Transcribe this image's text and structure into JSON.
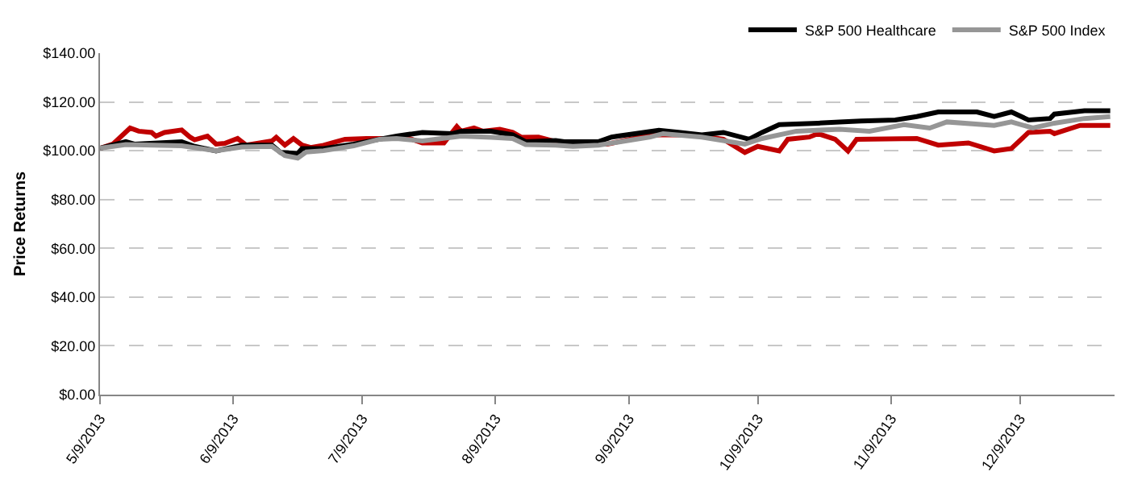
{
  "chart_data": {
    "type": "line",
    "ylabel": "Price Returns",
    "legend": "top right",
    "grid": "y",
    "line_style": "solid",
    "marker": "none",
    "xlim": [
      "2013-05-09",
      "2013-12-31"
    ],
    "xticks": [
      {
        "value": "2013-05-09",
        "label": "5/9/2013"
      },
      {
        "value": "2013-06-09",
        "label": "6/9/2013"
      },
      {
        "value": "2013-07-09",
        "label": "7/9/2013"
      },
      {
        "value": "2013-08-09",
        "label": "8/9/2013"
      },
      {
        "value": "2013-09-09",
        "label": "9/9/2013"
      },
      {
        "value": "2013-10-09",
        "label": "10/9/2013"
      },
      {
        "value": "2013-11-09",
        "label": "11/9/2013"
      },
      {
        "value": "2013-12-09",
        "label": "12/9/2013"
      }
    ],
    "ylim": [
      0,
      140
    ],
    "yticks": [
      {
        "value": 0,
        "label": "$0.00"
      },
      {
        "value": 20,
        "label": "$20.00"
      },
      {
        "value": 40,
        "label": "$40.00"
      },
      {
        "value": 60,
        "label": "$60.00"
      },
      {
        "value": 80,
        "label": "$80.00"
      },
      {
        "value": 100,
        "label": "$100.00"
      },
      {
        "value": 120,
        "label": "$120.00"
      },
      {
        "value": 140,
        "label": "$140.00"
      }
    ],
    "series": [
      {
        "color": "#c00000",
        "x": [
          "2013-05-09",
          "2013-05-12",
          "2013-05-16",
          "2013-05-18",
          "2013-05-21",
          "2013-05-22",
          "2013-05-24",
          "2013-05-28",
          "2013-05-30",
          "2013-05-31",
          "2013-06-03",
          "2013-06-05",
          "2013-06-07",
          "2013-06-10",
          "2013-06-12",
          "2013-06-18",
          "2013-06-19",
          "2013-06-21",
          "2013-06-23",
          "2013-06-25",
          "2013-06-27",
          "2013-06-30",
          "2013-07-03",
          "2013-07-05",
          "2013-07-10",
          "2013-07-17",
          "2013-07-20",
          "2013-07-23",
          "2013-07-28",
          "2013-07-31",
          "2013-08-01",
          "2013-08-04",
          "2013-08-06",
          "2013-08-10",
          "2013-08-13",
          "2013-08-15",
          "2013-08-19",
          "2013-08-23",
          "2013-08-27",
          "2013-09-04",
          "2013-09-14",
          "2013-09-24",
          "2013-10-01",
          "2013-10-06",
          "2013-10-09",
          "2013-10-14",
          "2013-10-16",
          "2013-10-21",
          "2013-10-23",
          "2013-10-27",
          "2013-10-30",
          "2013-11-01",
          "2013-11-15",
          "2013-11-20",
          "2013-11-27",
          "2013-12-03",
          "2013-12-07",
          "2013-12-11",
          "2013-12-16",
          "2013-12-17",
          "2013-12-23",
          "2013-12-30"
        ],
        "values": [
          101,
          102.7,
          109.3,
          108,
          107.5,
          106,
          107.5,
          108.5,
          105.5,
          104.5,
          106,
          102.7,
          103,
          105,
          102.3,
          104,
          105.5,
          102.3,
          105,
          102.3,
          101.3,
          102.2,
          103.7,
          104.7,
          105,
          105,
          105,
          103.2,
          103.2,
          109.9,
          108,
          109.3,
          108,
          108.8,
          107.5,
          105.5,
          105.6,
          103.7,
          102.7,
          102.7,
          106.5,
          106.5,
          104.7,
          99.3,
          101.8,
          99.9,
          104.7,
          105.6,
          107,
          104.7,
          99.9,
          104.7,
          105,
          102.3,
          103.2,
          99.9,
          100.9,
          107.5,
          108,
          107,
          110.4,
          110.4
        ]
      },
      {
        "name": "S&P 500 Healthcare",
        "color": "#000000",
        "x": [
          "2013-05-09",
          "2013-05-15",
          "2013-05-17",
          "2013-05-28",
          "2013-05-31",
          "2013-06-05",
          "2013-06-11",
          "2013-06-18",
          "2013-06-20",
          "2013-06-24",
          "2013-06-25",
          "2013-06-30",
          "2013-07-07",
          "2013-07-13",
          "2013-07-17",
          "2013-07-23",
          "2013-07-30",
          "2013-08-01",
          "2013-08-08",
          "2013-08-13",
          "2013-08-16",
          "2013-08-23",
          "2013-08-25",
          "2013-09-02",
          "2013-09-05",
          "2013-09-16",
          "2013-09-21",
          "2013-09-26",
          "2013-10-01",
          "2013-10-07",
          "2013-10-10",
          "2013-10-14",
          "2013-10-23",
          "2013-10-28",
          "2013-11-02",
          "2013-11-10",
          "2013-11-15",
          "2013-11-20",
          "2013-11-29",
          "2013-12-03",
          "2013-12-07",
          "2013-12-11",
          "2013-12-16",
          "2013-12-17",
          "2013-12-24",
          "2013-12-30"
        ],
        "values": [
          101,
          103.7,
          102.7,
          103.7,
          101.8,
          99.9,
          102.3,
          102.3,
          99.3,
          98.9,
          100.9,
          100.9,
          102.7,
          104.7,
          106,
          107.5,
          107,
          108,
          108,
          106.5,
          103.7,
          104.2,
          103.7,
          103.7,
          105.6,
          108.4,
          107.5,
          106.5,
          107.5,
          104.7,
          107.5,
          110.7,
          111.3,
          111.8,
          112.2,
          112.6,
          114,
          115.9,
          115.9,
          114,
          115.9,
          112.6,
          113.2,
          115,
          116.4,
          116.4
        ]
      },
      {
        "name": "S&P 500 Index",
        "color": "#969696",
        "x": [
          "2013-05-09",
          "2013-05-15",
          "2013-05-28",
          "2013-06-05",
          "2013-06-11",
          "2013-06-18",
          "2013-06-21",
          "2013-06-24",
          "2013-06-26",
          "2013-06-30",
          "2013-07-07",
          "2013-07-13",
          "2013-07-17",
          "2013-07-23",
          "2013-08-01",
          "2013-08-08",
          "2013-08-13",
          "2013-08-16",
          "2013-08-23",
          "2013-08-27",
          "2013-09-02",
          "2013-09-14",
          "2013-09-17",
          "2013-09-26",
          "2013-10-06",
          "2013-10-10",
          "2013-10-18",
          "2013-10-28",
          "2013-11-04",
          "2013-11-12",
          "2013-11-18",
          "2013-11-22",
          "2013-12-03",
          "2013-12-07",
          "2013-12-12",
          "2013-12-17",
          "2013-12-24",
          "2013-12-30"
        ],
        "values": [
          101,
          102.5,
          102,
          100,
          101.5,
          101.8,
          98,
          97,
          99.5,
          100,
          102,
          104.7,
          105,
          104,
          106,
          105.5,
          105,
          102.5,
          102.3,
          101.8,
          102.3,
          105.6,
          107,
          105.6,
          102.7,
          105,
          108,
          108.8,
          108,
          110.7,
          109.3,
          111.8,
          110.4,
          111.8,
          109.3,
          111.3,
          113.2,
          114
        ]
      }
    ]
  }
}
